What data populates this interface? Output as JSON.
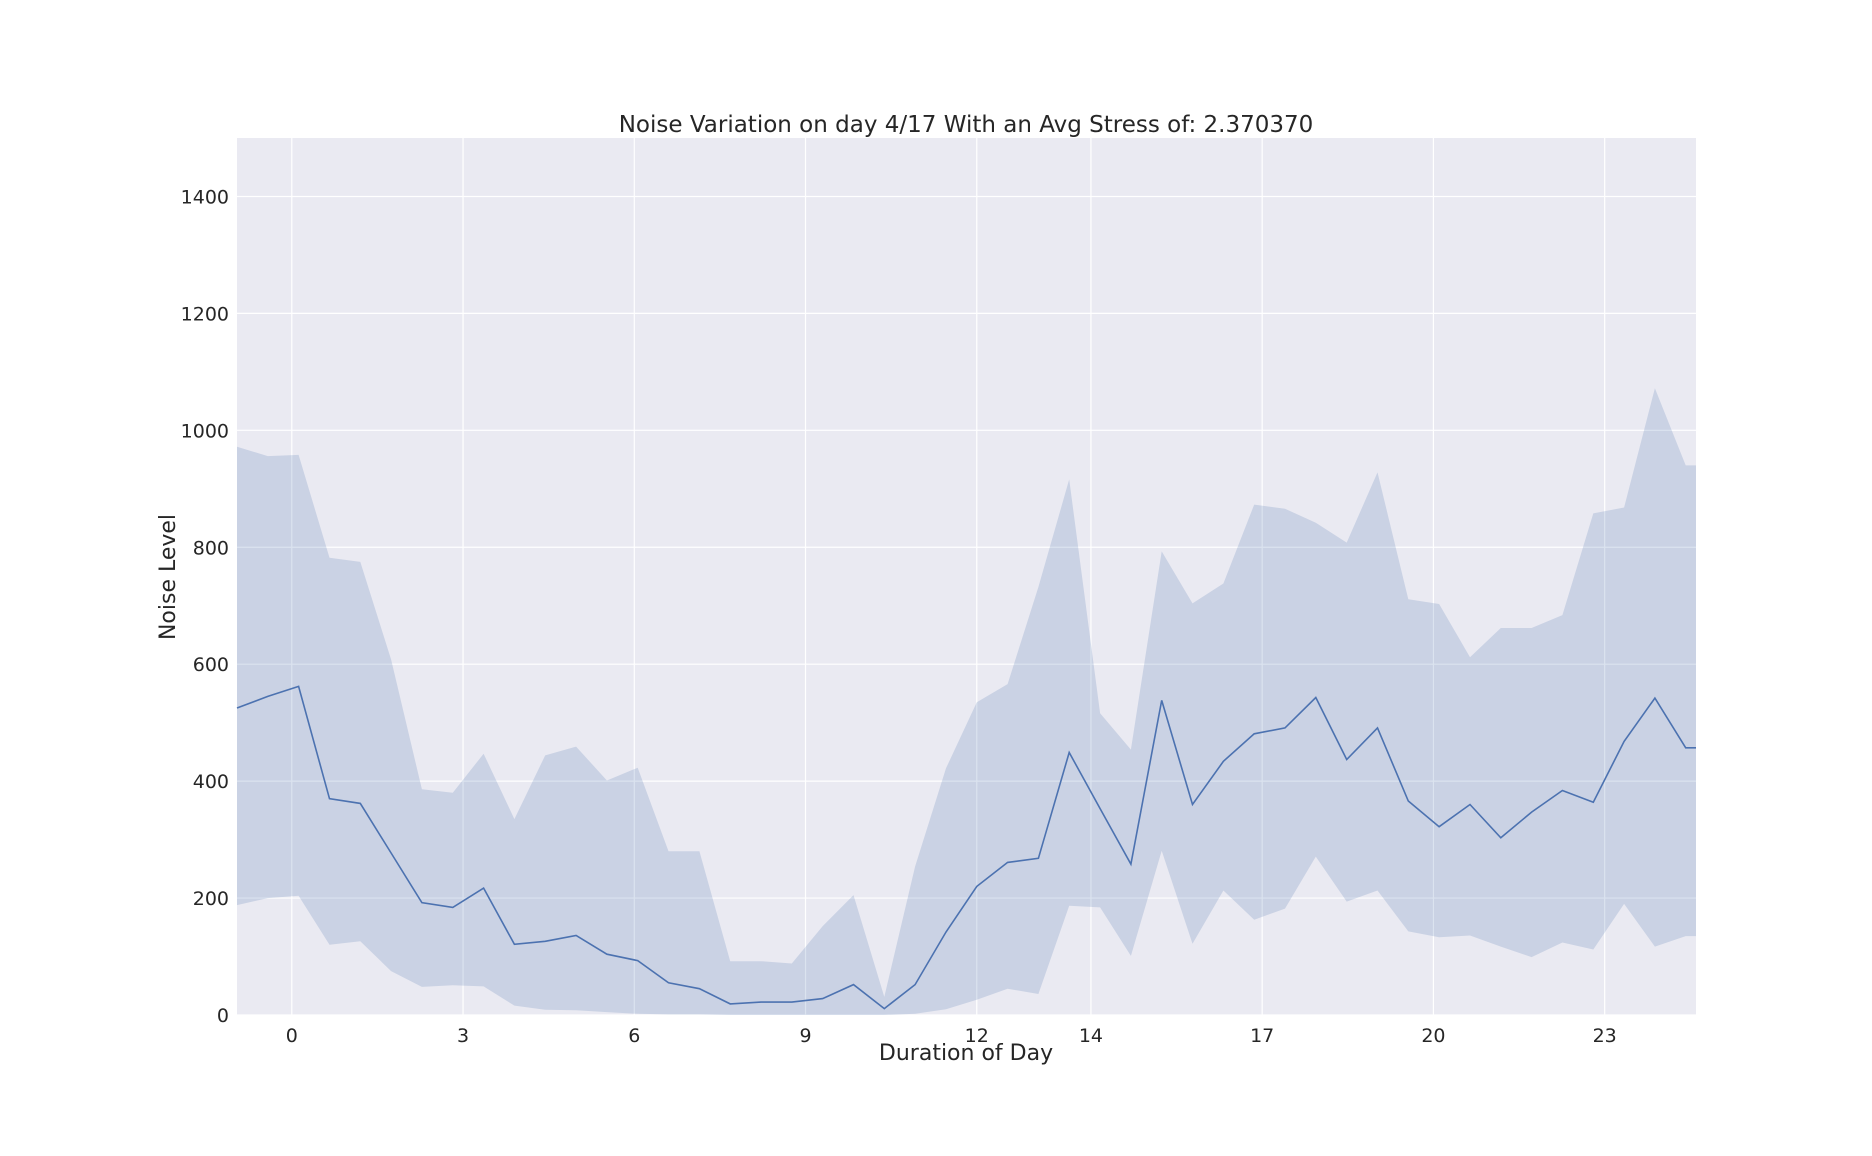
{
  "chart_data": {
    "type": "line",
    "title": "Noise Variation on day 4/17 With an Avg Stress of: 2.370370",
    "xlabel": "Duration of Day",
    "ylabel": "Noise Level",
    "xlim": [
      -0.96,
      24.6
    ],
    "ylim": [
      0,
      1500
    ],
    "x_ticks": [
      0,
      3,
      6,
      9,
      12,
      14,
      17,
      20,
      23
    ],
    "x_tick_labels": [
      "0",
      "3",
      "6",
      "9",
      "12",
      "14",
      "17",
      "20",
      "23"
    ],
    "y_ticks": [
      0,
      200,
      400,
      600,
      800,
      1000,
      1200,
      1400
    ],
    "y_tick_labels": [
      "0",
      "200",
      "400",
      "600",
      "800",
      "1000",
      "1200",
      "1400"
    ],
    "grid": true,
    "colors": {
      "background": "#eaeaf2",
      "grid": "#ffffff",
      "line": "#4c72b0",
      "band": "#4c72b0"
    },
    "series": [
      {
        "x": [
          -0.96,
          -0.42,
          0.12,
          0.66,
          1.2,
          1.74,
          2.28,
          2.82,
          3.36,
          3.9,
          4.44,
          4.98,
          5.52,
          6.06,
          6.6,
          7.14,
          7.68,
          8.22,
          8.76,
          9.3,
          9.84,
          10.38,
          10.92,
          11.46,
          12.0,
          12.54,
          13.08,
          13.62,
          14.16,
          14.7,
          15.24,
          15.78,
          16.32,
          16.86,
          17.4,
          17.94,
          18.48,
          19.02,
          19.56,
          20.1,
          20.64,
          21.18,
          21.72,
          22.26,
          22.8,
          23.34,
          23.88,
          24.42,
          24.6
        ],
        "values": [
          525,
          545,
          562,
          370,
          362,
          277,
          192,
          184,
          217,
          121,
          126,
          136,
          104,
          93,
          55,
          45,
          19,
          22,
          22,
          28,
          52,
          11,
          52,
          142,
          220,
          261,
          268,
          449,
          353,
          258,
          538,
          360,
          434,
          481,
          491,
          543,
          437,
          491,
          366,
          322,
          360,
          303,
          347,
          384,
          364,
          468,
          542,
          457,
          457
        ],
        "lower": [
          188,
          200,
          204,
          120,
          126,
          75,
          48,
          51,
          49,
          16,
          9,
          8,
          5,
          2,
          1,
          1,
          0,
          0,
          0,
          0,
          0,
          0,
          2,
          10,
          26,
          45,
          36,
          187,
          184,
          101,
          281,
          122,
          213,
          163,
          182,
          271,
          194,
          213,
          143,
          133,
          136,
          117,
          99,
          124,
          112,
          190,
          117,
          135,
          135
        ],
        "upper": [
          972,
          956,
          958,
          782,
          775,
          608,
          386,
          380,
          447,
          335,
          444,
          459,
          401,
          423,
          280,
          280,
          92,
          92,
          88,
          152,
          205,
          31,
          254,
          422,
          535,
          566,
          732,
          916,
          516,
          454,
          793,
          704,
          738,
          873,
          866,
          842,
          808,
          928,
          711,
          703,
          612,
          662,
          662,
          684,
          858,
          868,
          1072,
          940,
          940
        ]
      }
    ]
  }
}
